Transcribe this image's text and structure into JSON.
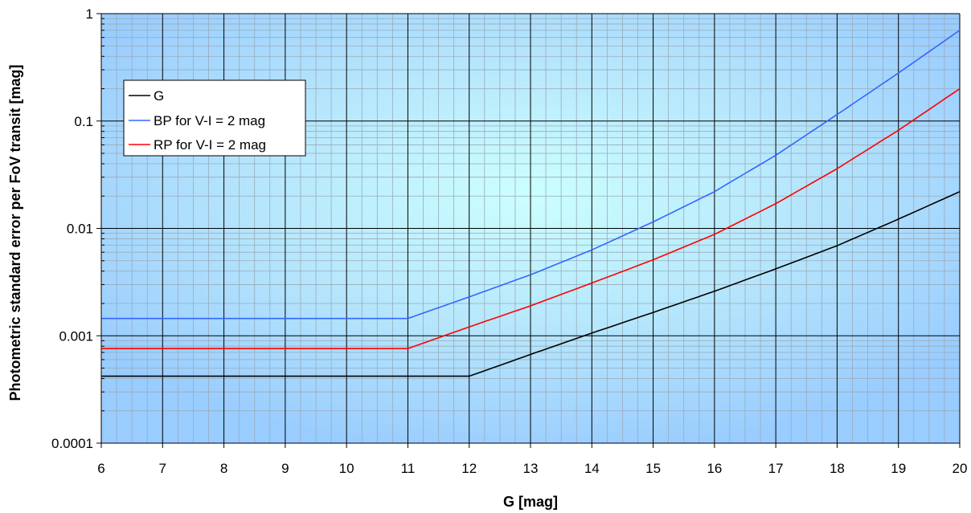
{
  "chart_data": {
    "type": "line",
    "title": "",
    "xlabel": "G [mag]",
    "ylabel": "Photometric standard error per FoV transit [mag]",
    "xlim": [
      6,
      20
    ],
    "ylim": [
      0.0001,
      1
    ],
    "yscale": "log",
    "x_ticks": [
      "6",
      "7",
      "8",
      "9",
      "10",
      "11",
      "12",
      "13",
      "14",
      "15",
      "16",
      "17",
      "18",
      "19",
      "20"
    ],
    "y_ticks": [
      "0.0001",
      "0.001",
      "0.01",
      "0.1",
      "1"
    ],
    "grid": true,
    "legend_position": "top-left",
    "series": [
      {
        "name": "G",
        "color": "#000000",
        "x": [
          6,
          7,
          8,
          9,
          10,
          11,
          12,
          13,
          14,
          15,
          16,
          17,
          18,
          19,
          20
        ],
        "y": [
          0.00042,
          0.00042,
          0.00042,
          0.00042,
          0.00042,
          0.00042,
          0.00042,
          0.00067,
          0.00106,
          0.00165,
          0.0026,
          0.0042,
          0.0069,
          0.0122,
          0.022
        ]
      },
      {
        "name": "BP for V-I = 2 mag",
        "color": "#3366ff",
        "x": [
          6,
          7,
          8,
          9,
          10,
          11,
          12,
          13,
          14,
          15,
          16,
          17,
          18,
          19,
          20
        ],
        "y": [
          0.00145,
          0.00145,
          0.00145,
          0.00145,
          0.00145,
          0.00145,
          0.0023,
          0.0037,
          0.0063,
          0.0115,
          0.022,
          0.048,
          0.115,
          0.28,
          0.7
        ]
      },
      {
        "name": "RP for V-I = 2 mag",
        "color": "#ff0000",
        "x": [
          6,
          7,
          8,
          9,
          10,
          11,
          12,
          13,
          14,
          15,
          16,
          17,
          18,
          19,
          20
        ],
        "y": [
          0.00076,
          0.00076,
          0.00076,
          0.00076,
          0.00076,
          0.00076,
          0.00121,
          0.0019,
          0.0031,
          0.0051,
          0.0088,
          0.017,
          0.036,
          0.082,
          0.2
        ]
      }
    ]
  }
}
